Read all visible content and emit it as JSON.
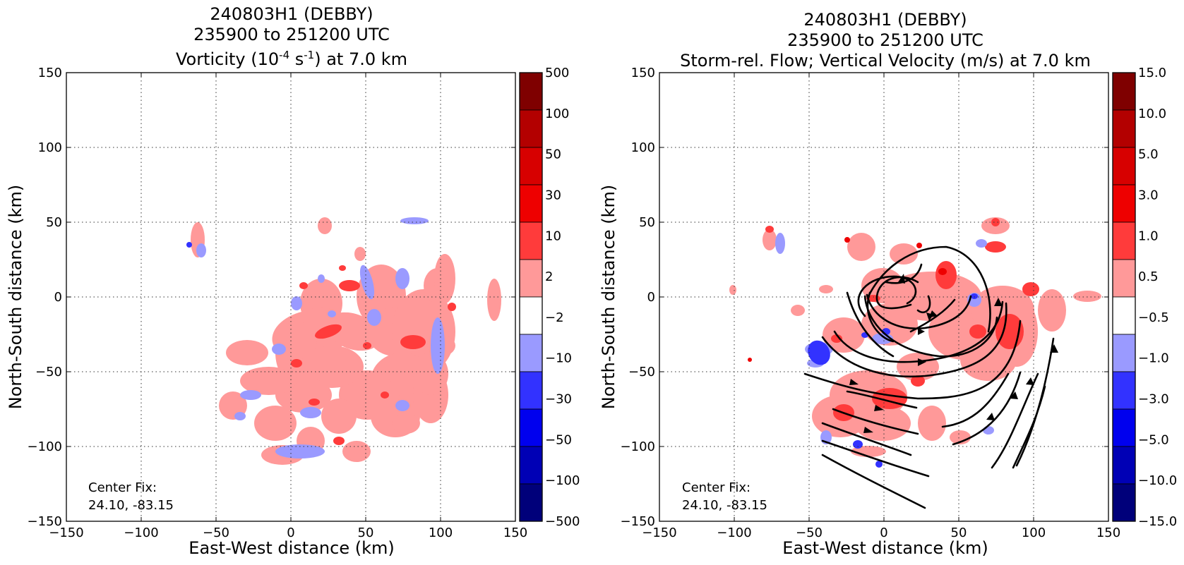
{
  "charts": [
    {
      "title_line1": "240803H1 (DEBBY)",
      "title_line2": "235900 to 251200 UTC",
      "title_line3_pre": "Vorticity (10",
      "title_line3_sup1": "-4",
      "title_line3_mid": " s",
      "title_line3_sup2": "-1",
      "title_line3_post": ") at 7.0 km",
      "center_fix_label": "Center Fix:",
      "center_fix_value": "24.10, -83.15",
      "colorbar_labels": [
        "500",
        "100",
        "50",
        "30",
        "10",
        "2",
        "−2",
        "−10",
        "−30",
        "−50",
        "−100",
        "−500"
      ]
    },
    {
      "title_line1": "240803H1 (DEBBY)",
      "title_line2": "235900 to 251200 UTC",
      "title_line3": "Storm-rel. Flow; Vertical Velocity (m/s) at 7.0 km",
      "center_fix_label": "Center Fix:",
      "center_fix_value": "24.10, -83.15",
      "colorbar_labels": [
        "15.0",
        "10.0",
        "5.0",
        "3.0",
        "1.0",
        "0.5",
        "−0.5",
        "−1.0",
        "−3.0",
        "−5.0",
        "−10.0",
        "−15.0"
      ]
    }
  ],
  "xlabel": "East-West distance (km)",
  "ylabel": "North-South distance (km)",
  "x_tick_labels": [
    "−150",
    "−100",
    "−50",
    "0",
    "50",
    "100",
    "150"
  ],
  "y_tick_labels": [
    "150",
    "100",
    "50",
    "0",
    "−50",
    "−100",
    "−150"
  ],
  "colorbar_colors": [
    "#7f0000",
    "#b30000",
    "#d70000",
    "#ee0000",
    "#ff3b3b",
    "#ff9999",
    "#ffffff",
    "#9a9aff",
    "#3232ff",
    "#0000ee",
    "#0000b5",
    "#00007a"
  ],
  "field_colors": {
    "pink": "#ff9999",
    "red": "#ff3b3b",
    "darkred": "#ee0000",
    "lightblue": "#9a9aff",
    "blue": "#3232ff"
  },
  "chart_data": [
    {
      "type": "heatmap",
      "title": "240803H1 (DEBBY) 235900 to 251200 UTC Vorticity (10^-4 s^-1) at 7.0 km",
      "xlabel": "East-West distance (km)",
      "ylabel": "North-South distance (km)",
      "xlim": [
        -150,
        150
      ],
      "ylim": [
        -150,
        150
      ],
      "xticks": [
        -150,
        -100,
        -50,
        0,
        50,
        100,
        150
      ],
      "yticks": [
        -150,
        -100,
        -50,
        0,
        50,
        100,
        150
      ],
      "grid": true,
      "colorbar_levels": [
        -500,
        -100,
        -50,
        -30,
        -10,
        -2,
        2,
        10,
        30,
        50,
        100,
        500
      ],
      "center_fix": [
        24.1,
        -83.15
      ]
    },
    {
      "type": "heatmap",
      "title": "240803H1 (DEBBY) 235900 to 251200 UTC Storm-rel. Flow; Vertical Velocity (m/s) at 7.0 km",
      "xlabel": "East-West distance (km)",
      "ylabel": "North-South distance (km)",
      "xlim": [
        -150,
        150
      ],
      "ylim": [
        -150,
        150
      ],
      "xticks": [
        -150,
        -100,
        -50,
        0,
        50,
        100,
        150
      ],
      "yticks": [
        -150,
        -100,
        -50,
        0,
        50,
        100,
        150
      ],
      "grid": true,
      "colorbar_levels": [
        -15.0,
        -10.0,
        -5.0,
        -3.0,
        -1.0,
        -0.5,
        0.5,
        1.0,
        3.0,
        5.0,
        10.0,
        15.0
      ],
      "center_fix": [
        24.1,
        -83.15
      ],
      "overlay": "streamlines"
    }
  ]
}
